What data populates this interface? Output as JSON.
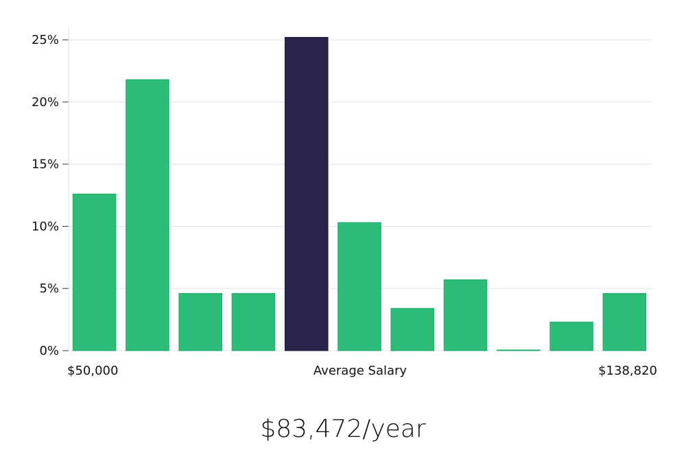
{
  "chart_data": {
    "type": "bar",
    "title": "",
    "ylabel": "",
    "ylim": [
      0,
      26
    ],
    "y_ticks": [
      0,
      5,
      10,
      15,
      20,
      25
    ],
    "y_tick_format": "percent",
    "grid": true,
    "values": [
      12.6,
      21.8,
      4.6,
      4.6,
      25.2,
      10.3,
      3.4,
      5.7,
      0.0,
      2.3,
      4.6
    ],
    "highlight_index": 4,
    "x_labels": {
      "min": "$50,000",
      "center": "Average Salary",
      "max": "$138,820"
    },
    "colors": {
      "bar": "#2bbd77",
      "bar_edge": "#23a865",
      "highlight": "#29244a",
      "grid": "#e2e2e2",
      "axis": "#dddddd"
    }
  },
  "salary_text": "$83,472/year"
}
